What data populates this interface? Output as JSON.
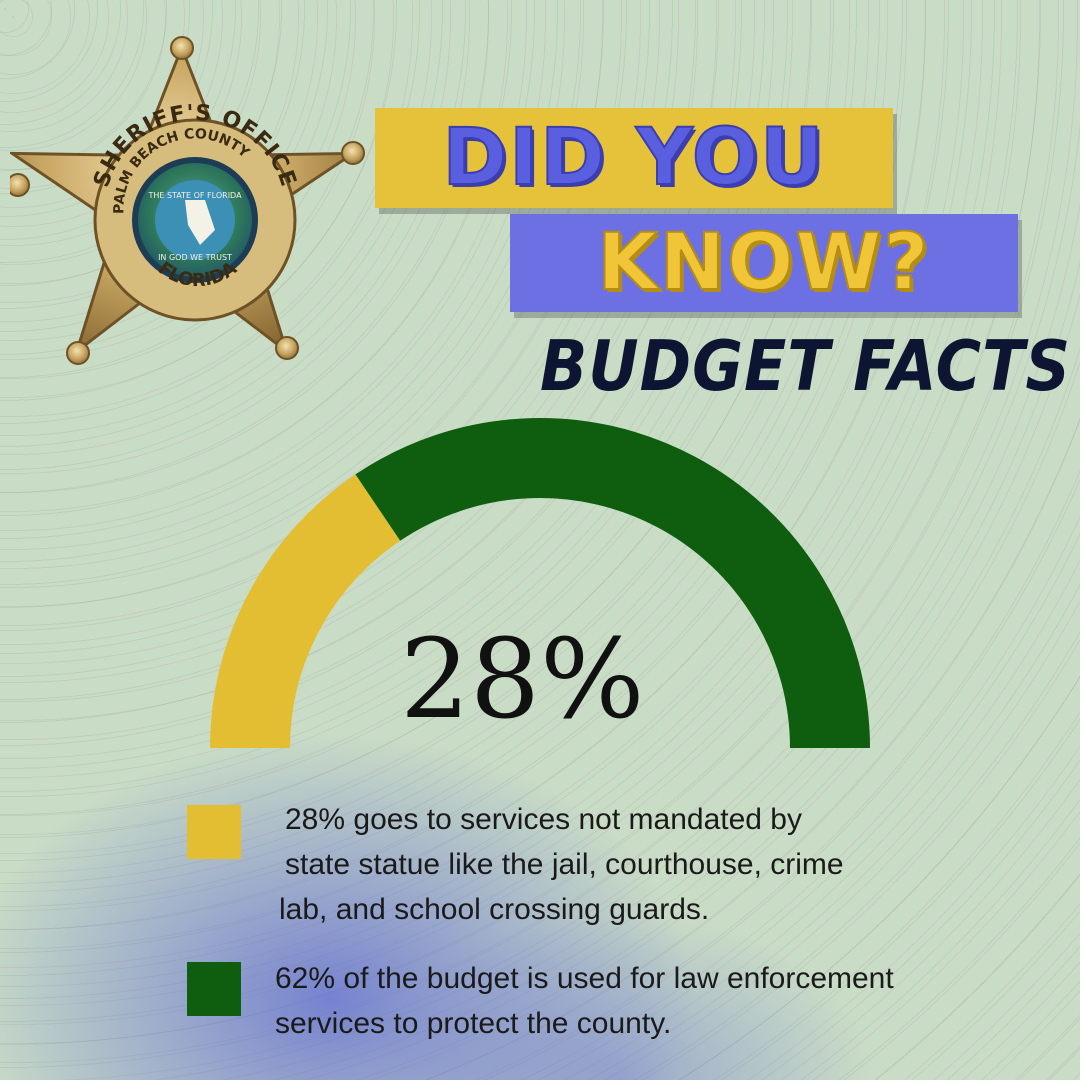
{
  "badge": {
    "top_arc": "SHERIFF'S OFFICE",
    "middle_arc": "PALM BEACH COUNTY",
    "bottom_arc": "FLORIDA",
    "seal_top": "THE STATE OF FLORIDA",
    "seal_bottom": "IN GOD WE TRUST"
  },
  "header": {
    "line1": "DID YOU",
    "line2": "KNOW?",
    "subtitle": "BUDGET FACTS"
  },
  "chart_data": {
    "type": "pie",
    "style": "semicircle-gauge",
    "center_label": "28%",
    "slices": [
      {
        "label": "28%  goes to services not mandated by state statue like the jail, courthouse, crime lab, and school crossing guards.",
        "value": 28,
        "color": "#e3be33"
      },
      {
        "label": "62% of the budget is used for law enforcement services to protect the county.",
        "value": 62,
        "color": "#0f5e0f"
      }
    ]
  },
  "legend": [
    {
      "color": "#e3be33",
      "lines": [
        "28%  goes to services not mandated by",
        "state statue like the jail, courthouse, crime",
        "lab, and school crossing guards."
      ]
    },
    {
      "color": "#0f5e0f",
      "lines": [
        "62% of the budget is used for law enforcement",
        "services to protect the county."
      ]
    }
  ],
  "colors": {
    "background": "#c9dcc6",
    "banner_yellow": "#e6c23a",
    "banner_blue": "#6c70e3",
    "title_navy": "#0e1533"
  }
}
